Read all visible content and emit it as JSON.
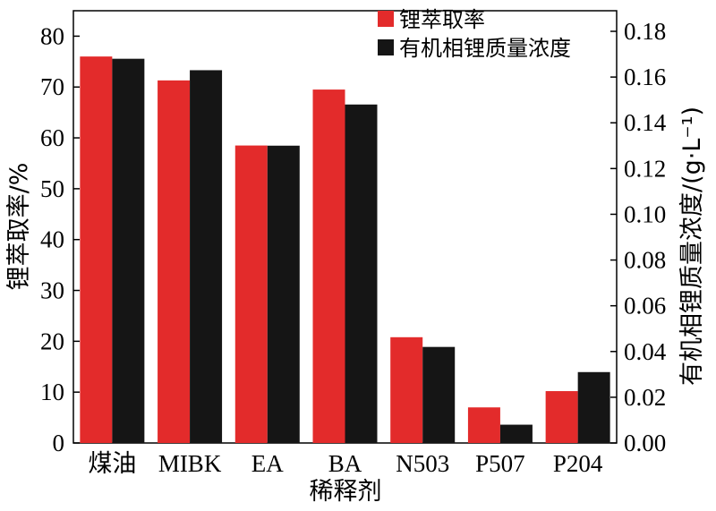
{
  "chart_data": {
    "type": "bar",
    "categories": [
      "煤油",
      "MIBK",
      "EA",
      "BA",
      "N503",
      "P507",
      "P204"
    ],
    "series": [
      {
        "name": "锂萃取率",
        "axis": "left",
        "color": "#e32b2b",
        "values": [
          76.0,
          71.3,
          58.5,
          69.5,
          20.8,
          7.0,
          10.2
        ]
      },
      {
        "name": "有机相锂质量浓度",
        "axis": "right",
        "color": "#151515",
        "values": [
          0.168,
          0.163,
          0.13,
          0.148,
          0.042,
          0.008,
          0.031
        ]
      }
    ],
    "xlabel": "稀释剂",
    "ylabel_left": "锂萃取率/%",
    "ylabel_right": "有机相锂质量浓度/(g·L⁻¹)",
    "ylim_left": [
      0,
      85
    ],
    "ylim_right": [
      0,
      0.189
    ],
    "yticks_left": [
      "0",
      "10",
      "20",
      "30",
      "40",
      "50",
      "60",
      "70",
      "80"
    ],
    "yticks_right": [
      "0.00",
      "0.02",
      "0.04",
      "0.06",
      "0.08",
      "0.10",
      "0.12",
      "0.14",
      "0.16",
      "0.18"
    ],
    "legend_position": "top-right",
    "grid": false
  }
}
